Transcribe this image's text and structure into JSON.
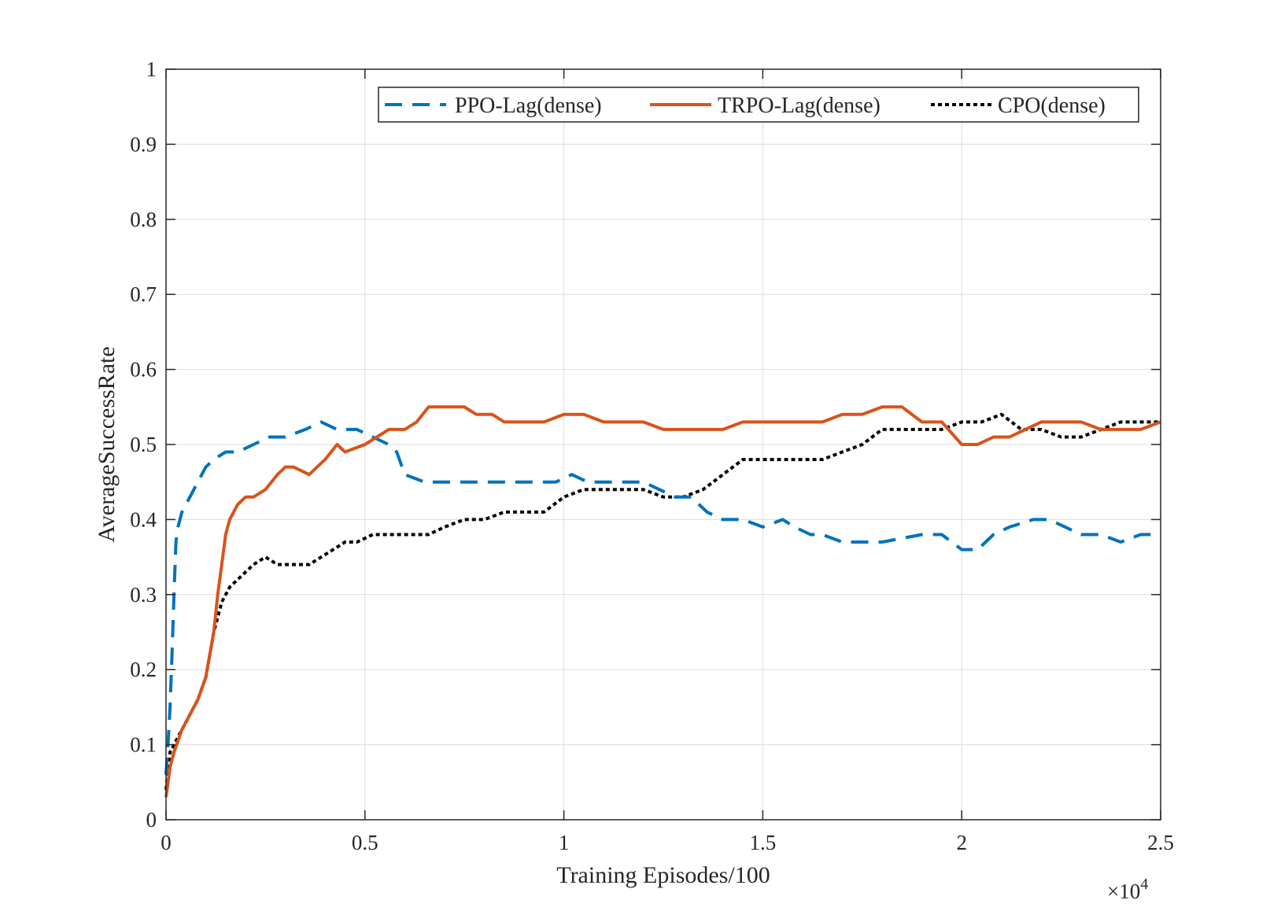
{
  "chart_data": {
    "type": "line",
    "xlabel": "Training Episodes/100",
    "ylabel": "AverageSuccessRate",
    "x_multiplier": "×10",
    "x_multiplier_exp": "4",
    "xlim": [
      0,
      25000
    ],
    "ylim": [
      0,
      1
    ],
    "x_ticks": [
      0,
      5000,
      10000,
      15000,
      20000,
      25000
    ],
    "x_tick_labels": [
      "0",
      "0.5",
      "1",
      "1.5",
      "2",
      "2.5"
    ],
    "y_ticks": [
      0,
      0.1,
      0.2,
      0.3,
      0.4,
      0.5,
      0.6,
      0.7,
      0.8,
      0.9,
      1
    ],
    "y_tick_labels": [
      "0",
      "0.1",
      "0.2",
      "0.3",
      "0.4",
      "0.5",
      "0.6",
      "0.7",
      "0.8",
      "0.9",
      "1"
    ],
    "grid": true,
    "legend_position": "top-right",
    "series": [
      {
        "name": "PPO-Lag(dense)",
        "color": "#0072BD",
        "style": "dashed",
        "x": [
          0,
          50,
          100,
          150,
          200,
          250,
          300,
          350,
          400,
          500,
          700,
          1000,
          1200,
          1500,
          1800,
          2200,
          2600,
          3000,
          3500,
          3900,
          4300,
          4800,
          5200,
          5600,
          5800,
          6000,
          6500,
          7000,
          8000,
          9000,
          9800,
          10200,
          10600,
          11000,
          12000,
          12800,
          13200,
          13600,
          14000,
          14500,
          15000,
          15500,
          15800,
          16200,
          16500,
          17000,
          18000,
          19000,
          19500,
          20000,
          20400,
          20800,
          21200,
          21800,
          22200,
          22600,
          23000,
          23500,
          24000,
          24500,
          24800
        ],
        "y": [
          0.06,
          0.1,
          0.15,
          0.22,
          0.3,
          0.37,
          0.39,
          0.4,
          0.41,
          0.42,
          0.44,
          0.47,
          0.48,
          0.49,
          0.49,
          0.5,
          0.51,
          0.51,
          0.52,
          0.53,
          0.52,
          0.52,
          0.51,
          0.5,
          0.49,
          0.46,
          0.45,
          0.45,
          0.45,
          0.45,
          0.45,
          0.46,
          0.45,
          0.45,
          0.45,
          0.43,
          0.43,
          0.41,
          0.4,
          0.4,
          0.39,
          0.4,
          0.39,
          0.38,
          0.38,
          0.37,
          0.37,
          0.38,
          0.38,
          0.36,
          0.36,
          0.38,
          0.39,
          0.4,
          0.4,
          0.39,
          0.38,
          0.38,
          0.37,
          0.38,
          0.38
        ]
      },
      {
        "name": "TRPO-Lag(dense)",
        "color": "#D95319",
        "style": "solid",
        "x": [
          0,
          100,
          200,
          400,
          600,
          800,
          1000,
          1200,
          1300,
          1400,
          1500,
          1600,
          1800,
          2000,
          2200,
          2500,
          2800,
          3000,
          3200,
          3600,
          3800,
          4000,
          4300,
          4500,
          5000,
          5300,
          5600,
          6000,
          6300,
          6600,
          7000,
          7500,
          7800,
          8200,
          8500,
          9000,
          9500,
          10000,
          10500,
          11000,
          11500,
          12000,
          12500,
          13000,
          13500,
          14000,
          14500,
          15000,
          15500,
          16000,
          16500,
          17000,
          17500,
          18000,
          18500,
          19000,
          19500,
          20000,
          20400,
          20800,
          21200,
          21600,
          22000,
          22500,
          23000,
          23500,
          24000,
          24500,
          25000
        ],
        "y": [
          0.03,
          0.07,
          0.09,
          0.12,
          0.14,
          0.16,
          0.19,
          0.25,
          0.3,
          0.34,
          0.38,
          0.4,
          0.42,
          0.43,
          0.43,
          0.44,
          0.46,
          0.47,
          0.47,
          0.46,
          0.47,
          0.48,
          0.5,
          0.49,
          0.5,
          0.51,
          0.52,
          0.52,
          0.53,
          0.55,
          0.55,
          0.55,
          0.54,
          0.54,
          0.53,
          0.53,
          0.53,
          0.54,
          0.54,
          0.53,
          0.53,
          0.53,
          0.52,
          0.52,
          0.52,
          0.52,
          0.53,
          0.53,
          0.53,
          0.53,
          0.53,
          0.54,
          0.54,
          0.55,
          0.55,
          0.53,
          0.53,
          0.5,
          0.5,
          0.51,
          0.51,
          0.52,
          0.53,
          0.53,
          0.53,
          0.52,
          0.52,
          0.52,
          0.53
        ]
      },
      {
        "name": "CPO(dense)",
        "color": "#000000",
        "style": "dotted",
        "x": [
          0,
          100,
          200,
          400,
          600,
          800,
          1000,
          1200,
          1400,
          1600,
          1800,
          2000,
          2200,
          2500,
          2800,
          3000,
          3300,
          3600,
          3900,
          4200,
          4500,
          4800,
          5200,
          5600,
          6000,
          6300,
          6600,
          7000,
          7500,
          8000,
          8500,
          9000,
          9500,
          10000,
          10500,
          11000,
          11500,
          12000,
          12500,
          13000,
          13500,
          14000,
          14500,
          15000,
          15500,
          16000,
          16500,
          17000,
          17500,
          18000,
          18500,
          19000,
          19500,
          20000,
          20500,
          21000,
          21500,
          22000,
          22500,
          23000,
          23500,
          24000,
          24500,
          25000
        ],
        "y": [
          0.04,
          0.09,
          0.1,
          0.12,
          0.14,
          0.16,
          0.19,
          0.25,
          0.29,
          0.31,
          0.32,
          0.33,
          0.34,
          0.35,
          0.34,
          0.34,
          0.34,
          0.34,
          0.35,
          0.36,
          0.37,
          0.37,
          0.38,
          0.38,
          0.38,
          0.38,
          0.38,
          0.39,
          0.4,
          0.4,
          0.41,
          0.41,
          0.41,
          0.43,
          0.44,
          0.44,
          0.44,
          0.44,
          0.43,
          0.43,
          0.44,
          0.46,
          0.48,
          0.48,
          0.48,
          0.48,
          0.48,
          0.49,
          0.5,
          0.52,
          0.52,
          0.52,
          0.52,
          0.53,
          0.53,
          0.54,
          0.52,
          0.52,
          0.51,
          0.51,
          0.52,
          0.53,
          0.53,
          0.53
        ]
      }
    ]
  }
}
